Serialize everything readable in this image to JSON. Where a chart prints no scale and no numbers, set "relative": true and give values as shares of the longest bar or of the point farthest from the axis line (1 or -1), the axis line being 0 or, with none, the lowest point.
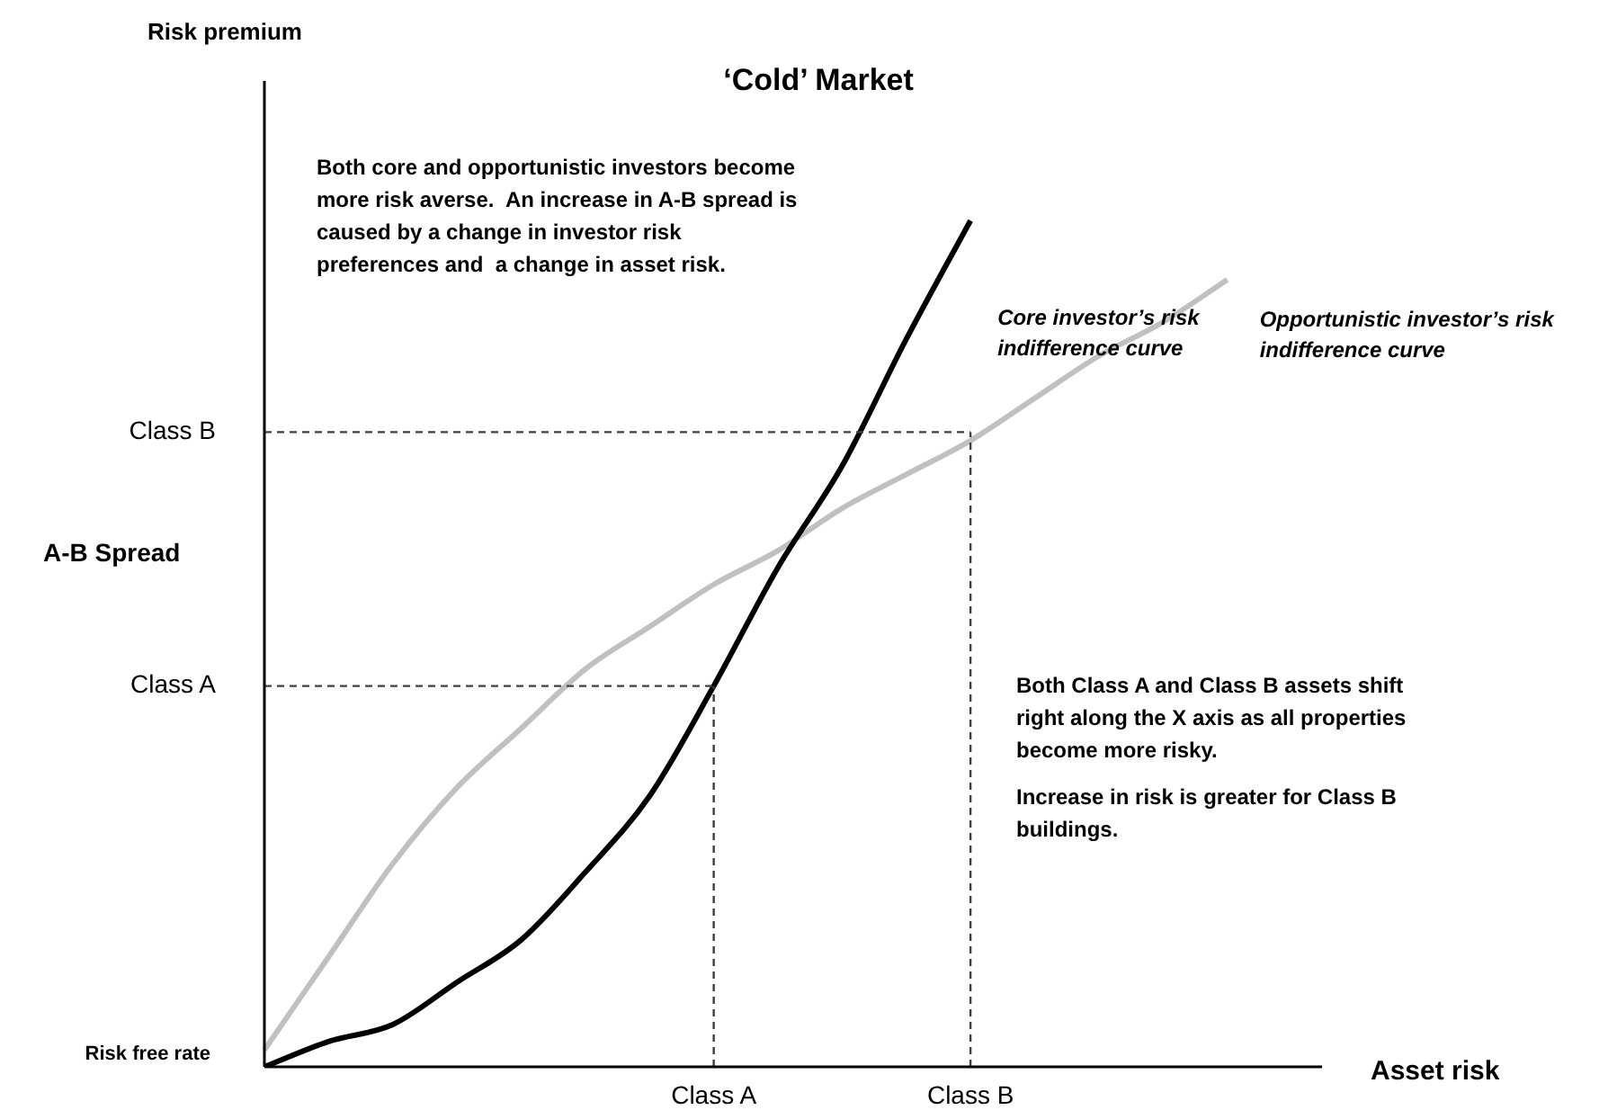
{
  "chart_data": {
    "type": "line",
    "title": "‘Cold’ Market",
    "xlabel": "Asset risk",
    "relative": true,
    "grid": false,
    "legend": false,
    "marker": "none",
    "categories": [
      null,
      null,
      null,
      null,
      null,
      null,
      null,
      "Class A",
      null,
      null,
      null,
      "Class B",
      null,
      null,
      null,
      null,
      null
    ],
    "series": [
      {
        "name": "Core investor’s risk indifference curve",
        "color": "#000000",
        "values": [
          0,
          0.03,
          0.05,
          0.1,
          0.15,
          0.23,
          0.32,
          0.45,
          0.59,
          0.71,
          0.86,
          1,
          null,
          null,
          null,
          null,
          null
        ]
      },
      {
        "name": "Opportunistic investor’s risk indifference curve",
        "color": "#c0c0c0",
        "values": [
          0.02,
          0.13,
          0.24,
          0.33,
          0.4,
          0.47,
          0.52,
          0.57,
          0.61,
          0.66,
          0.7,
          0.74,
          0.79,
          0.84,
          0.88,
          0.93,
          null
        ]
      }
    ],
    "ref_lines": [
      {
        "axis": "x",
        "value": "Class A",
        "color": "#404040",
        "line_style": "dashed"
      },
      {
        "axis": "x",
        "value": "Class B",
        "color": "#404040",
        "line_style": "dashed"
      },
      {
        "axis": "y",
        "value": 0.45,
        "label": "Class A",
        "color": "#404040",
        "line_style": "dashed"
      },
      {
        "axis": "y",
        "value": 0.75,
        "label": "Class B",
        "color": "#404040",
        "line_style": "dashed"
      }
    ],
    "annotations": [
      "Both core and opportunistic investors become more risk averse.  An increase in A-B spread is caused by a change in investor risk preferences and  a change in asset risk.",
      "Both Class A and Class B assets shift right along the X axis as all properties become more risky.",
      "Increase in risk is greater for Class B buildings.",
      "A-B Spread",
      "Risk free rate",
      "Risk premium"
    ]
  }
}
